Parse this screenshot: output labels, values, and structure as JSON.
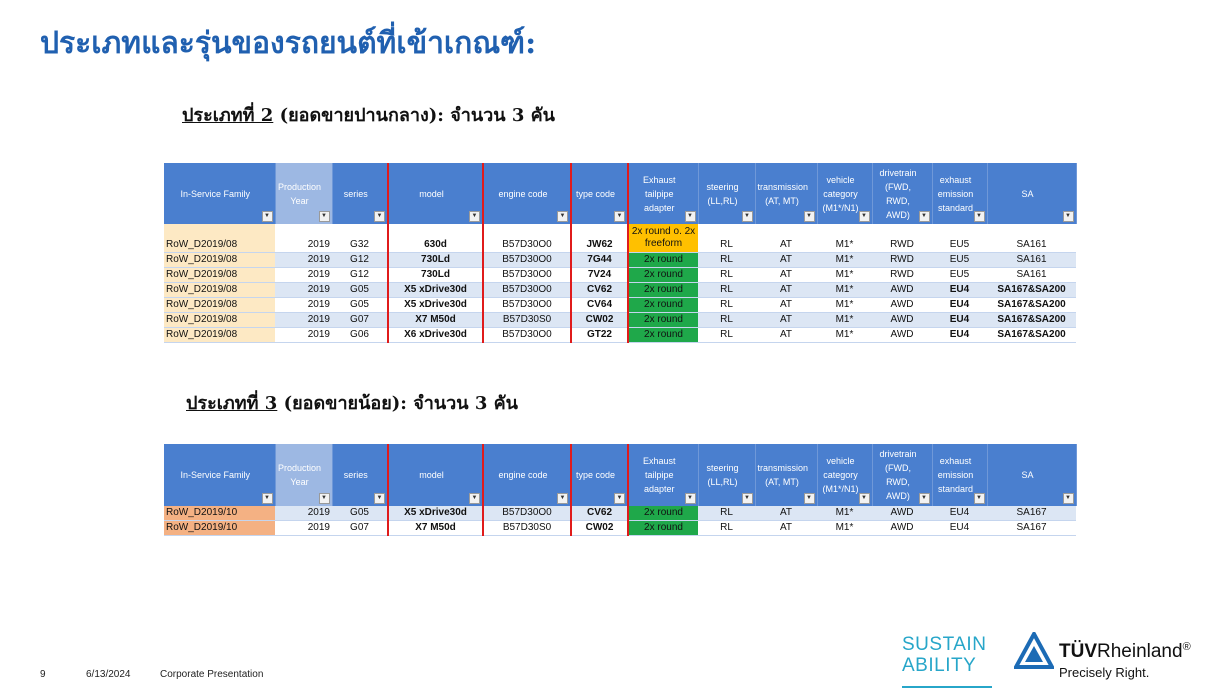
{
  "title": "ประเภทและรุ่นของรถยนต์ที่เข้าเกณฑ์:",
  "section2": {
    "prefix": "ประเภทที่ 2",
    "suffix": " (ยอดขายปานกลาง): จำนวน 3 คัน"
  },
  "section3": {
    "prefix": "ประเภทที่ 3",
    "suffix": " (ยอดขายน้อย): จำนวน 3 คัน"
  },
  "table_headers": {
    "family": "In-Service Family",
    "year": "Production Year",
    "series": "series",
    "model": "model",
    "engine": "engine code",
    "type": "type code",
    "exhaust": "Exhaust tailpipe adapter",
    "steering": "steering (LL,RL)",
    "transmission": "transmission (AT, MT)",
    "vehicle": "vehicle category (M1*/N1)",
    "drivetrain": "drivetrain (FWD, RWD, AWD)",
    "emission": "exhaust emission standard",
    "sa": "SA"
  },
  "filter_icon": "filter-dropdown-icon",
  "table2_rows": [
    {
      "family": "RoW_D2019/08",
      "year": "2019",
      "series": "G32",
      "model": "630d",
      "engine": "B57D30O0",
      "type": "JW62",
      "exhaust": "2x round o. 2x freeform",
      "steering": "RL",
      "transmission": "AT",
      "vehicle": "M1*",
      "drivetrain": "RWD",
      "emission": "EU5",
      "sa": "SA161"
    },
    {
      "family": "RoW_D2019/08",
      "year": "2019",
      "series": "G12",
      "model": "730Ld",
      "engine": "B57D30O0",
      "type": "7G44",
      "exhaust": "2x round",
      "steering": "RL",
      "transmission": "AT",
      "vehicle": "M1*",
      "drivetrain": "RWD",
      "emission": "EU5",
      "sa": "SA161"
    },
    {
      "family": "RoW_D2019/08",
      "year": "2019",
      "series": "G12",
      "model": "730Ld",
      "engine": "B57D30O0",
      "type": "7V24",
      "exhaust": "2x round",
      "steering": "RL",
      "transmission": "AT",
      "vehicle": "M1*",
      "drivetrain": "RWD",
      "emission": "EU5",
      "sa": "SA161"
    },
    {
      "family": "RoW_D2019/08",
      "year": "2019",
      "series": "G05",
      "model": "X5 xDrive30d",
      "engine": "B57D30O0",
      "type": "CV62",
      "exhaust": "2x round",
      "steering": "RL",
      "transmission": "AT",
      "vehicle": "M1*",
      "drivetrain": "AWD",
      "emission": "EU4",
      "sa": "SA167&SA200"
    },
    {
      "family": "RoW_D2019/08",
      "year": "2019",
      "series": "G05",
      "model": "X5 xDrive30d",
      "engine": "B57D30O0",
      "type": "CV64",
      "exhaust": "2x round",
      "steering": "RL",
      "transmission": "AT",
      "vehicle": "M1*",
      "drivetrain": "AWD",
      "emission": "EU4",
      "sa": "SA167&SA200"
    },
    {
      "family": "RoW_D2019/08",
      "year": "2019",
      "series": "G07",
      "model": "X7 M50d",
      "engine": "B57D30S0",
      "type": "CW02",
      "exhaust": "2x round",
      "steering": "RL",
      "transmission": "AT",
      "vehicle": "M1*",
      "drivetrain": "AWD",
      "emission": "EU4",
      "sa": "SA167&SA200"
    },
    {
      "family": "RoW_D2019/08",
      "year": "2019",
      "series": "G06",
      "model": "X6 xDrive30d",
      "engine": "B57D30O0",
      "type": "GT22",
      "exhaust": "2x round",
      "steering": "RL",
      "transmission": "AT",
      "vehicle": "M1*",
      "drivetrain": "AWD",
      "emission": "EU4",
      "sa": "SA167&SA200"
    }
  ],
  "table3_rows": [
    {
      "family": "RoW_D2019/10",
      "year": "2019",
      "series": "G05",
      "model": "X5 xDrive30d",
      "engine": "B57D30O0",
      "type": "CV62",
      "exhaust": "2x round",
      "steering": "RL",
      "transmission": "AT",
      "vehicle": "M1*",
      "drivetrain": "AWD",
      "emission": "EU4",
      "sa": "SA167"
    },
    {
      "family": "RoW_D2019/10",
      "year": "2019",
      "series": "G07",
      "model": "X7 M50d",
      "engine": "B57D30S0",
      "type": "CW02",
      "exhaust": "2x round",
      "steering": "RL",
      "transmission": "AT",
      "vehicle": "M1*",
      "drivetrain": "AWD",
      "emission": "EU4",
      "sa": "SA167"
    }
  ],
  "footer": {
    "page": "9",
    "date": "6/13/2024",
    "name": "Corporate Presentation"
  },
  "logos": {
    "sustain_line1": "SUSTAIN",
    "sustain_line2": "ABILITY",
    "tuv_bold": "TÜV",
    "tuv_rest": "Rheinland",
    "tuv_reg": "®",
    "tuv_tagline": "Precisely Right.",
    "tuv_icon": "tuv-triangle-logo-icon"
  },
  "colors": {
    "title": "#2060b0",
    "header_bg": "#4a7fcf",
    "year_header_bg": "#9db8e3",
    "exhaust_green": "#1fa84a",
    "exhaust_amber": "#ffc000",
    "family_cell_t2": "#fde9c4",
    "family_cell_t3": "#f4b183",
    "separator_red": "#e01b1b",
    "sustain_teal": "#27a6c9",
    "tuv_blue": "#1c6bb5"
  }
}
